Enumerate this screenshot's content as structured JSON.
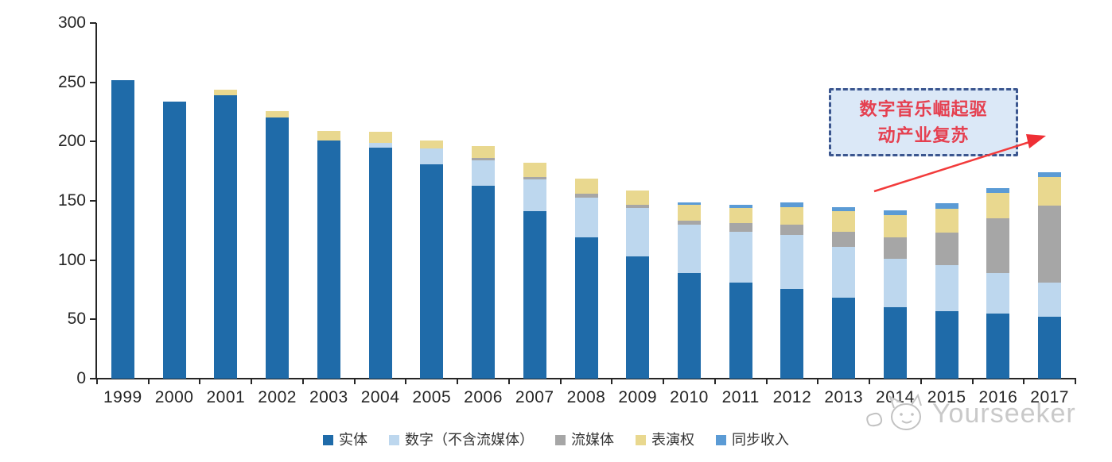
{
  "chart_data": {
    "type": "bar",
    "stacked": true,
    "title": "",
    "xlabel": "",
    "ylabel": "",
    "ylim": [
      0,
      300
    ],
    "y_ticks": [
      0,
      50,
      100,
      150,
      200,
      250,
      300
    ],
    "grid": false,
    "legend_position": "bottom",
    "categories": [
      "1999",
      "2000",
      "2001",
      "2002",
      "2003",
      "2004",
      "2005",
      "2006",
      "2007",
      "2008",
      "2009",
      "2010",
      "2011",
      "2012",
      "2013",
      "2014",
      "2015",
      "2016",
      "2017"
    ],
    "series": [
      {
        "name": "实体",
        "color": "#1F6BA9",
        "values": [
          252,
          234,
          239,
          220,
          201,
          195,
          181,
          163,
          141,
          119,
          103,
          89,
          81,
          76,
          68,
          60,
          57,
          55,
          52
        ]
      },
      {
        "name": "数字（不含流媒体）",
        "color": "#BDD7EE",
        "values": [
          0,
          0,
          0,
          0,
          0,
          4,
          13,
          21,
          27,
          34,
          41,
          41,
          43,
          45,
          43,
          41,
          39,
          34,
          29
        ]
      },
      {
        "name": "流媒体",
        "color": "#A6A6A6",
        "values": [
          0,
          0,
          0,
          0,
          0,
          0,
          0,
          2,
          2,
          3,
          3,
          3,
          7,
          9,
          13,
          18,
          27,
          46,
          65
        ]
      },
      {
        "name": "表演权",
        "color": "#E9D88F",
        "values": [
          0,
          0,
          5,
          6,
          8,
          9,
          7,
          10,
          12,
          13,
          12,
          14,
          13,
          15,
          17,
          19,
          20,
          22,
          24
        ]
      },
      {
        "name": "同步收入",
        "color": "#5B9BD5",
        "values": [
          0,
          0,
          0,
          0,
          0,
          0,
          0,
          0,
          0,
          0,
          0,
          2,
          3,
          4,
          4,
          4,
          5,
          4,
          4
        ]
      }
    ]
  },
  "annotation": {
    "line1": "数字音乐崛起驱",
    "line2": "动产业复苏",
    "box_fill": "#DBE8F7",
    "box_border": "#3B568F",
    "text_color": "#E54050",
    "arrow_color": "#F23B3B"
  },
  "watermark": {
    "text": "Yourseeker",
    "logo": "doodle-cat-icon",
    "color": "#C9C9C9"
  },
  "axis": {
    "color": "#262626",
    "label_color": "#262626"
  }
}
